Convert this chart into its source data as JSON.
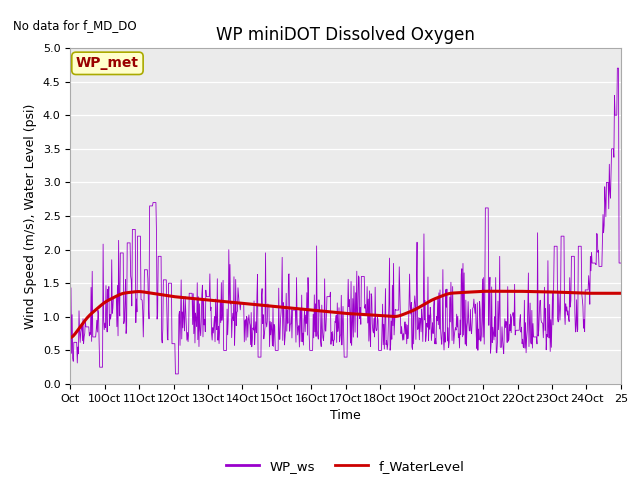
{
  "title": "WP miniDOT Dissolved Oxygen",
  "top_left_text": "No data for f_MD_DO",
  "ylabel": "Wind Speed (m/s), Water Level (psi)",
  "xlabel": "Time",
  "ylim": [
    0.0,
    5.0
  ],
  "yticks": [
    0.0,
    0.5,
    1.0,
    1.5,
    2.0,
    2.5,
    3.0,
    3.5,
    4.0,
    4.5,
    5.0
  ],
  "xtick_labels": [
    "Oct",
    "10Oct",
    "11Oct",
    "12Oct",
    "13Oct",
    "14Oct",
    "15Oct",
    "16Oct",
    "17Oct",
    "18Oct",
    "19Oct",
    "20Oct",
    "21Oct",
    "22Oct",
    "23Oct",
    "24Oct",
    "25"
  ],
  "legend_labels": [
    "WP_ws",
    "f_WaterLevel"
  ],
  "legend_colors": [
    "#9900cc",
    "#cc0000"
  ],
  "wp_ws_color": "#9900cc",
  "f_waterlevel_color": "#cc0000",
  "annotation_box_text": "WP_met",
  "annotation_box_color": "#ffffcc",
  "annotation_box_text_color": "#990000",
  "annotation_box_edge_color": "#aaaa00",
  "background_color": "#ebebeb",
  "title_fontsize": 12,
  "label_fontsize": 9,
  "tick_fontsize": 8,
  "figsize": [
    6.4,
    4.8
  ],
  "dpi": 100
}
